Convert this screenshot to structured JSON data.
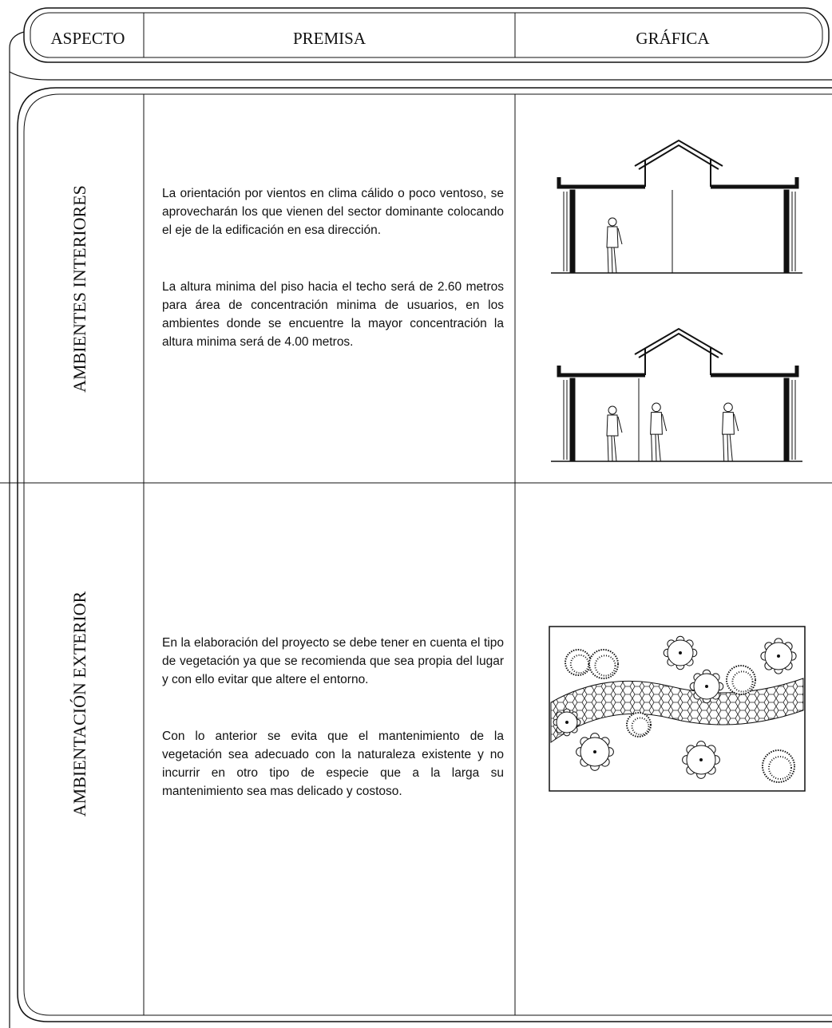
{
  "header": {
    "columns": [
      "ASPECTO",
      "PREMISA",
      "GRÁFICA"
    ]
  },
  "rows": [
    {
      "aspect": "AMBIENTES INTERIORES",
      "paragraphs": [
        "La orientación por vientos en clima cálido o poco ventoso, se aprovecharán los que vienen del sector dominante colocando el eje de la edificación en esa dirección.",
        "La altura minima del piso hacia el techo será de 2.60 metros para área de concentración minima de usuarios, en los ambientes donde se encuentre la mayor concentración la altura minima será de 4.00 metros."
      ]
    },
    {
      "aspect": "AMBIENTACIÓN EXTERIOR",
      "paragraphs": [
        "En la elaboración del proyecto se debe tener en cuenta el tipo de vegetación ya que se recomienda que sea propia del lugar y con ello evitar que altere el entorno.",
        "Con lo anterior se evita que el mantenimiento de la vegetación sea adecuado con la naturaleza existente y no incurrir en otro tipo de especie que a la larga su mantenimiento sea mas delicado y costoso."
      ]
    }
  ]
}
